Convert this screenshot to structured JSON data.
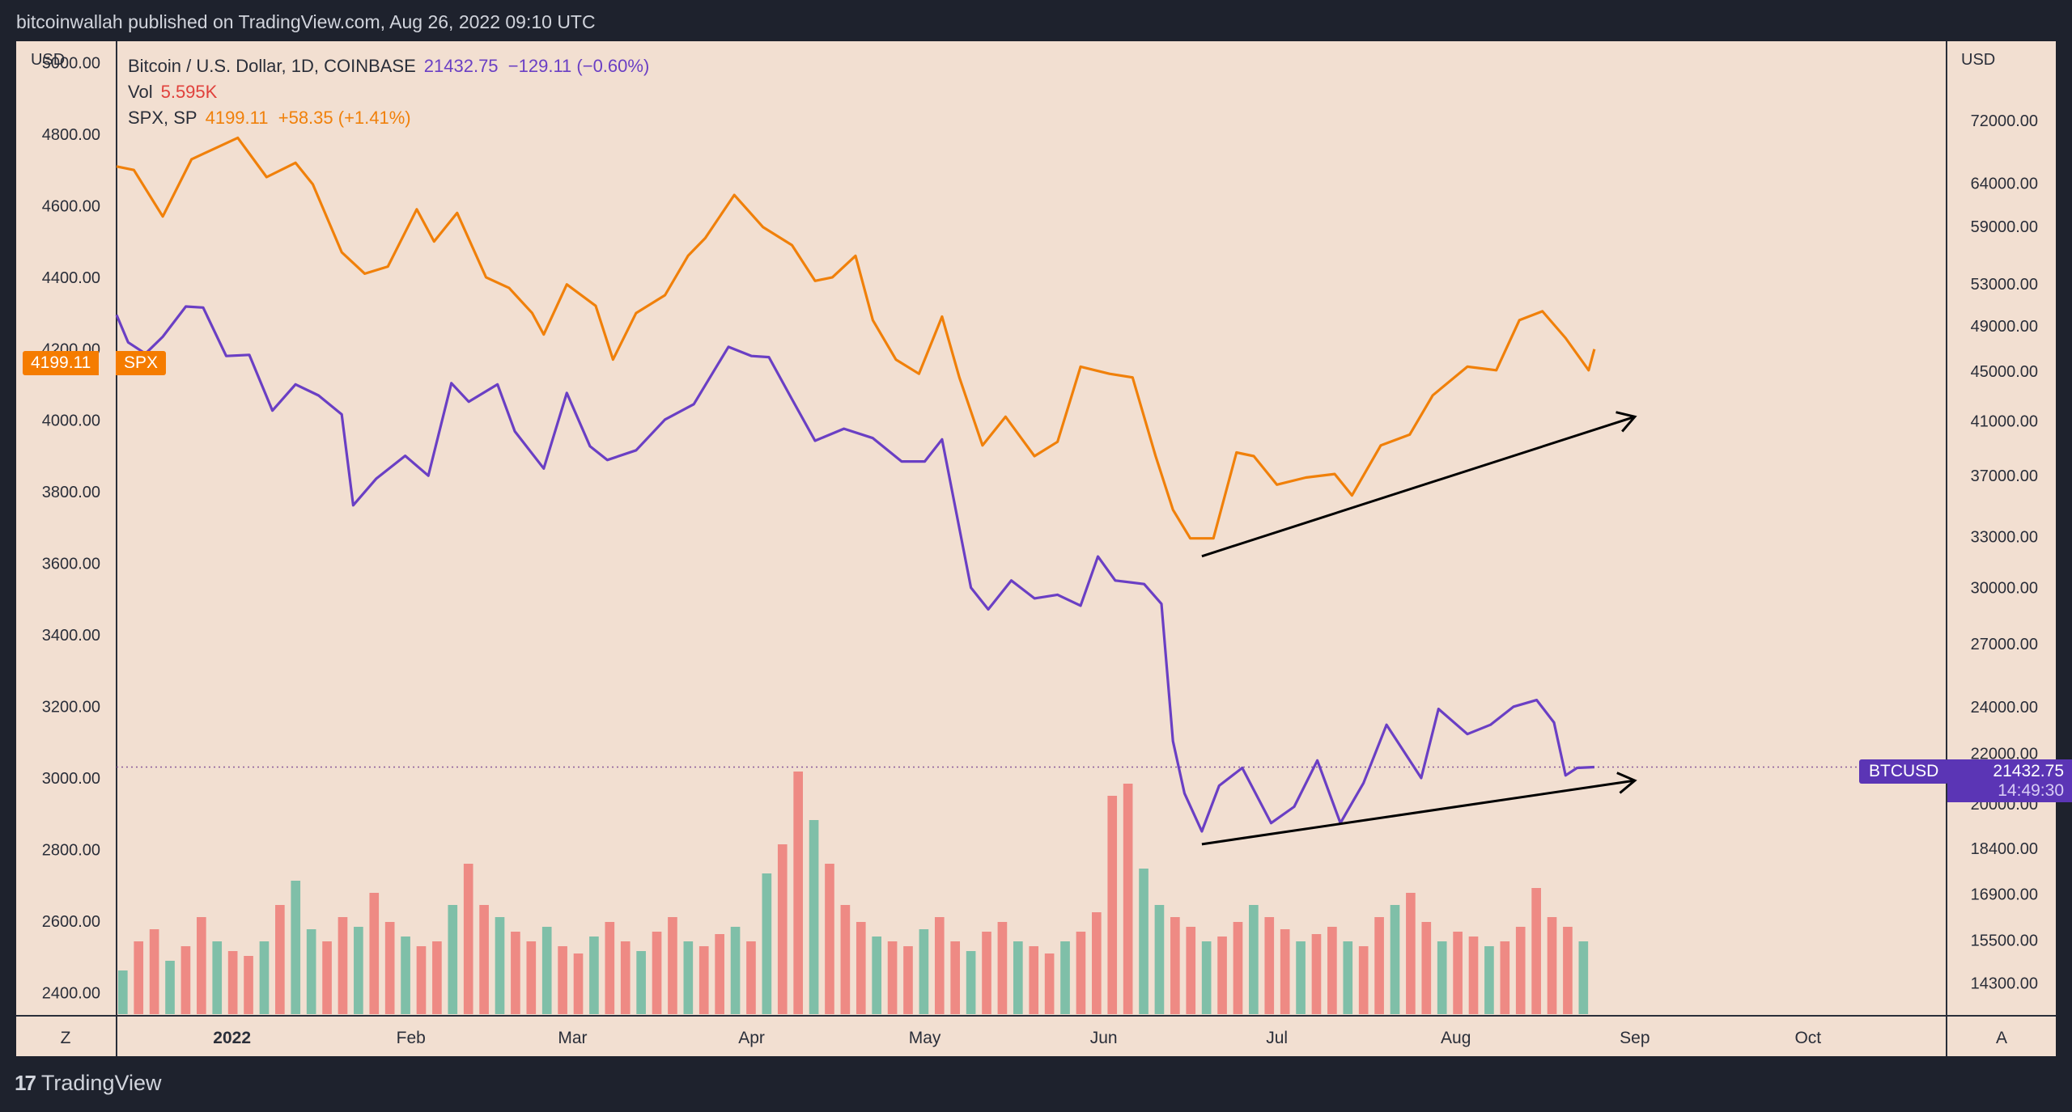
{
  "header": {
    "published": "bitcoinwallah published on TradingView.com, Aug 26, 2022 09:10 UTC"
  },
  "footer": {
    "brand": "TradingView"
  },
  "legend": {
    "btc_label": "Bitcoin / U.S. Dollar, 1D, COINBASE",
    "btc_value": "21432.75",
    "btc_change": "−129.11 (−0.60%)",
    "vol_label": "Vol",
    "vol_value": "5.595K",
    "spx_label": "SPX, SP",
    "spx_value": "4199.11",
    "spx_change": "+58.35 (+1.41%)"
  },
  "tags": {
    "spx_price": "4199.11",
    "spx_name": "SPX",
    "btc_name": "BTCUSD",
    "btc_price": "21432.75",
    "btc_countdown": "14:49:30"
  },
  "axis_buttons": {
    "left": "Z",
    "right": "A"
  },
  "colors": {
    "background": "#f2dfd1",
    "btc": "#6a3fc4",
    "spx": "#f0800a",
    "vol_up": "#7fbfa8",
    "vol_down": "#ee8a84"
  },
  "chart_data": {
    "type": "line",
    "left_axis": {
      "unit": "USD",
      "ticks": [
        5000,
        4800,
        4600,
        4400,
        4200,
        4000,
        3800,
        3600,
        3400,
        3200,
        3000,
        2800,
        2600,
        2400
      ],
      "range": [
        2335,
        5060
      ]
    },
    "right_axis": {
      "unit": "USD",
      "scale": "log",
      "ticks": [
        72000,
        64000,
        59000,
        53000,
        49000,
        45000,
        41000,
        37000,
        33000,
        30000,
        27000,
        24000,
        22000,
        20000,
        18400,
        16900,
        15500,
        14300
      ],
      "range": [
        13450,
        83500
      ]
    },
    "x_axis": {
      "labels": [
        "2022",
        "Feb",
        "Mar",
        "Apr",
        "May",
        "Jun",
        "Jul",
        "Aug",
        "Sep",
        "Oct"
      ],
      "label_dates": [
        "2022-01-01",
        "2022-02-01",
        "2022-03-01",
        "2022-04-01",
        "2022-05-01",
        "2022-06-01",
        "2022-07-01",
        "2022-08-01",
        "2022-09-01",
        "2022-10-01"
      ],
      "range": [
        "2021-12-12",
        "2022-10-25"
      ]
    },
    "series": [
      {
        "name": "SPX, SP",
        "axis": "left",
        "points": [
          [
            "2021-12-12",
            4710
          ],
          [
            "2021-12-15",
            4700
          ],
          [
            "2021-12-20",
            4570
          ],
          [
            "2021-12-25",
            4730
          ],
          [
            "2022-01-02",
            4790
          ],
          [
            "2022-01-07",
            4680
          ],
          [
            "2022-01-12",
            4720
          ],
          [
            "2022-01-15",
            4660
          ],
          [
            "2022-01-20",
            4470
          ],
          [
            "2022-01-24",
            4410
          ],
          [
            "2022-01-28",
            4430
          ],
          [
            "2022-02-02",
            4590
          ],
          [
            "2022-02-05",
            4500
          ],
          [
            "2022-02-09",
            4580
          ],
          [
            "2022-02-14",
            4400
          ],
          [
            "2022-02-18",
            4370
          ],
          [
            "2022-02-22",
            4300
          ],
          [
            "2022-02-24",
            4240
          ],
          [
            "2022-02-28",
            4380
          ],
          [
            "2022-03-05",
            4320
          ],
          [
            "2022-03-08",
            4170
          ],
          [
            "2022-03-12",
            4300
          ],
          [
            "2022-03-17",
            4350
          ],
          [
            "2022-03-21",
            4460
          ],
          [
            "2022-03-24",
            4510
          ],
          [
            "2022-03-29",
            4630
          ],
          [
            "2022-04-03",
            4540
          ],
          [
            "2022-04-08",
            4490
          ],
          [
            "2022-04-12",
            4390
          ],
          [
            "2022-04-15",
            4400
          ],
          [
            "2022-04-19",
            4460
          ],
          [
            "2022-04-22",
            4280
          ],
          [
            "2022-04-26",
            4170
          ],
          [
            "2022-04-30",
            4130
          ],
          [
            "2022-05-04",
            4290
          ],
          [
            "2022-05-07",
            4120
          ],
          [
            "2022-05-11",
            3930
          ],
          [
            "2022-05-15",
            4010
          ],
          [
            "2022-05-20",
            3900
          ],
          [
            "2022-05-24",
            3940
          ],
          [
            "2022-05-28",
            4150
          ],
          [
            "2022-06-02",
            4130
          ],
          [
            "2022-06-06",
            4120
          ],
          [
            "2022-06-10",
            3900
          ],
          [
            "2022-06-13",
            3750
          ],
          [
            "2022-06-16",
            3670
          ],
          [
            "2022-06-20",
            3670
          ],
          [
            "2022-06-24",
            3910
          ],
          [
            "2022-06-27",
            3900
          ],
          [
            "2022-07-01",
            3820
          ],
          [
            "2022-07-06",
            3840
          ],
          [
            "2022-07-11",
            3850
          ],
          [
            "2022-07-14",
            3790
          ],
          [
            "2022-07-19",
            3930
          ],
          [
            "2022-07-24",
            3960
          ],
          [
            "2022-07-28",
            4070
          ],
          [
            "2022-08-03",
            4150
          ],
          [
            "2022-08-08",
            4140
          ],
          [
            "2022-08-12",
            4280
          ],
          [
            "2022-08-16",
            4305
          ],
          [
            "2022-08-20",
            4230
          ],
          [
            "2022-08-24",
            4140
          ],
          [
            "2022-08-25",
            4199.11
          ]
        ]
      },
      {
        "name": "Bitcoin / U.S. Dollar, 1D, COINBASE",
        "axis": "right",
        "points": [
          [
            "2021-12-12",
            50000
          ],
          [
            "2021-12-14",
            47500
          ],
          [
            "2021-12-17",
            46500
          ],
          [
            "2021-12-20",
            48000
          ],
          [
            "2021-12-24",
            50800
          ],
          [
            "2021-12-27",
            50700
          ],
          [
            "2021-12-31",
            46300
          ],
          [
            "2022-01-04",
            46400
          ],
          [
            "2022-01-08",
            41800
          ],
          [
            "2022-01-12",
            43900
          ],
          [
            "2022-01-16",
            43000
          ],
          [
            "2022-01-20",
            41500
          ],
          [
            "2022-01-22",
            35000
          ],
          [
            "2022-01-26",
            36800
          ],
          [
            "2022-01-31",
            38400
          ],
          [
            "2022-02-04",
            37000
          ],
          [
            "2022-02-08",
            44000
          ],
          [
            "2022-02-11",
            42500
          ],
          [
            "2022-02-16",
            43900
          ],
          [
            "2022-02-19",
            40200
          ],
          [
            "2022-02-24",
            37500
          ],
          [
            "2022-02-28",
            43200
          ],
          [
            "2022-03-04",
            39100
          ],
          [
            "2022-03-07",
            38100
          ],
          [
            "2022-03-12",
            38800
          ],
          [
            "2022-03-17",
            41100
          ],
          [
            "2022-03-22",
            42300
          ],
          [
            "2022-03-28",
            47100
          ],
          [
            "2022-04-01",
            46300
          ],
          [
            "2022-04-04",
            46200
          ],
          [
            "2022-04-08",
            42700
          ],
          [
            "2022-04-12",
            39500
          ],
          [
            "2022-04-17",
            40400
          ],
          [
            "2022-04-22",
            39700
          ],
          [
            "2022-04-27",
            38000
          ],
          [
            "2022-05-01",
            38000
          ],
          [
            "2022-05-04",
            39600
          ],
          [
            "2022-05-09",
            30000
          ],
          [
            "2022-05-12",
            28800
          ],
          [
            "2022-05-16",
            30400
          ],
          [
            "2022-05-20",
            29400
          ],
          [
            "2022-05-24",
            29600
          ],
          [
            "2022-05-28",
            29000
          ],
          [
            "2022-05-31",
            31800
          ],
          [
            "2022-06-03",
            30400
          ],
          [
            "2022-06-08",
            30200
          ],
          [
            "2022-06-11",
            29100
          ],
          [
            "2022-06-13",
            22500
          ],
          [
            "2022-06-15",
            20400
          ],
          [
            "2022-06-18",
            19000
          ],
          [
            "2022-06-21",
            20700
          ],
          [
            "2022-06-25",
            21400
          ],
          [
            "2022-06-30",
            19300
          ],
          [
            "2022-07-04",
            19900
          ],
          [
            "2022-07-08",
            21700
          ],
          [
            "2022-07-12",
            19300
          ],
          [
            "2022-07-16",
            20800
          ],
          [
            "2022-07-20",
            23200
          ],
          [
            "2022-07-26",
            21000
          ],
          [
            "2022-07-29",
            23900
          ],
          [
            "2022-08-03",
            22800
          ],
          [
            "2022-08-07",
            23200
          ],
          [
            "2022-08-11",
            24000
          ],
          [
            "2022-08-15",
            24300
          ],
          [
            "2022-08-18",
            23300
          ],
          [
            "2022-08-20",
            21100
          ],
          [
            "2022-08-22",
            21400
          ],
          [
            "2022-08-25",
            21432.75
          ]
        ]
      },
      {
        "name": "Vol",
        "type": "bar",
        "last_value": "5.595K",
        "relative_heights": [
          0.18,
          0.3,
          0.35,
          0.22,
          0.28,
          0.4,
          0.3,
          0.26,
          0.24,
          0.3,
          0.45,
          0.55,
          0.35,
          0.3,
          0.4,
          0.36,
          0.5,
          0.38,
          0.32,
          0.28,
          0.3,
          0.45,
          0.62,
          0.45,
          0.4,
          0.34,
          0.3,
          0.36,
          0.28,
          0.25,
          0.32,
          0.38,
          0.3,
          0.26,
          0.34,
          0.4,
          0.3,
          0.28,
          0.33,
          0.36,
          0.3,
          0.58,
          0.7,
          1.0,
          0.8,
          0.62,
          0.45,
          0.38,
          0.32,
          0.3,
          0.28,
          0.35,
          0.4,
          0.3,
          0.26,
          0.34,
          0.38,
          0.3,
          0.28,
          0.25,
          0.3,
          0.34,
          0.42,
          0.9,
          0.95,
          0.6,
          0.45,
          0.4,
          0.36,
          0.3,
          0.32,
          0.38,
          0.45,
          0.4,
          0.35,
          0.3,
          0.33,
          0.36,
          0.3,
          0.28,
          0.4,
          0.45,
          0.5,
          0.38,
          0.3,
          0.34,
          0.32,
          0.28,
          0.3,
          0.36,
          0.52,
          0.4,
          0.36,
          0.3
        ]
      }
    ],
    "annotations": [
      {
        "type": "arrow",
        "series": "SPX, SP",
        "direction": "up"
      },
      {
        "type": "arrow",
        "series": "Bitcoin / U.S. Dollar, 1D, COINBASE",
        "direction": "up"
      }
    ]
  }
}
